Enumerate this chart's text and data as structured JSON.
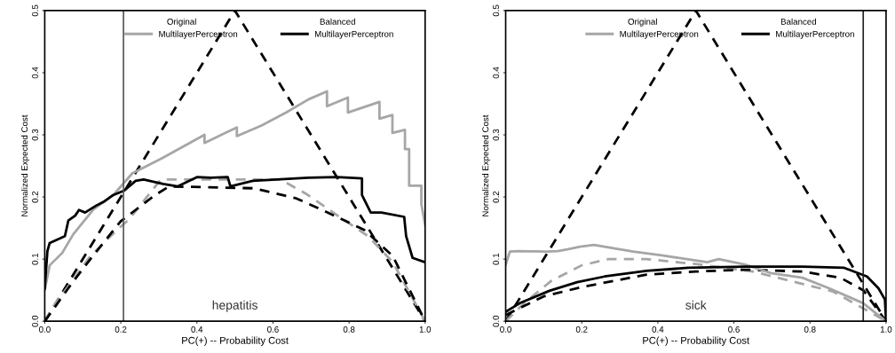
{
  "chart_data": [
    {
      "type": "line",
      "xlabel": "PC(+) -- Probability Cost",
      "ylabel": "Normalized Expected Cost",
      "annotations": [
        "Original",
        "Balanced",
        "hepatitis"
      ],
      "legend": "top",
      "grid": false,
      "marker": "none",
      "xlim": [
        0,
        1
      ],
      "ylim": [
        0,
        0.5
      ],
      "xticks": [
        {
          "value": 0,
          "label": "0.0"
        },
        {
          "value": 0.2,
          "label": "0.2"
        },
        {
          "value": 0.4,
          "label": "0.4"
        },
        {
          "value": 0.6,
          "label": "0.6"
        },
        {
          "value": 0.8,
          "label": "0.8"
        },
        {
          "value": 1,
          "label": "1.0"
        }
      ],
      "yticks": [
        {
          "value": 0,
          "label": "0.0"
        },
        {
          "value": 0.1,
          "label": "0.1"
        },
        {
          "value": 0.2,
          "label": "0.2"
        },
        {
          "value": 0.3,
          "label": "0.3"
        },
        {
          "value": 0.4,
          "label": "0.4"
        },
        {
          "value": 0.5,
          "label": "0.5"
        }
      ],
      "ref_lines": [
        {
          "axis": "x",
          "value": 0.207,
          "color": "#555555",
          "line_style": "solid"
        }
      ],
      "series": [
        {
          "color": "#000000",
          "line_style": "dashed",
          "x": [
            0,
            0.5,
            1
          ],
          "values": [
            0,
            0.5,
            0
          ]
        },
        {
          "color": "#a6a6a6",
          "line_style": "dashed",
          "x": [
            0,
            0.024,
            0.07,
            0.12,
            0.18,
            0.223,
            0.305,
            0.62,
            0.69,
            0.77,
            0.85,
            0.915,
            1
          ],
          "values": [
            0,
            0.025,
            0.063,
            0.105,
            0.141,
            0.165,
            0.228,
            0.228,
            0.204,
            0.17,
            0.137,
            0.095,
            0
          ]
        },
        {
          "color": "#000000",
          "line_style": "dashed",
          "x": [
            0,
            0.07,
            0.12,
            0.2,
            0.29,
            0.327,
            0.55,
            0.66,
            0.73,
            0.84,
            0.915,
            1
          ],
          "values": [
            0,
            0.06,
            0.1,
            0.161,
            0.203,
            0.217,
            0.214,
            0.198,
            0.179,
            0.147,
            0.105,
            0
          ]
        },
        {
          "name": "MultilayerPerceptron",
          "color": "#a6a6a6",
          "line_style": "solid",
          "x": [
            0,
            0.013,
            0.046,
            0.075,
            0.128,
            0.18,
            0.23,
            0.31,
            0.42,
            0.42,
            0.505,
            0.505,
            0.57,
            0.635,
            0.693,
            0.742,
            0.742,
            0.797,
            0.797,
            0.88,
            0.88,
            0.914,
            0.914,
            0.947,
            0.947,
            0.958,
            0.958,
            0.99,
            0.99,
            1
          ],
          "values": [
            0.05,
            0.09,
            0.11,
            0.14,
            0.18,
            0.203,
            0.238,
            0.263,
            0.3,
            0.287,
            0.312,
            0.298,
            0.315,
            0.336,
            0.357,
            0.37,
            0.346,
            0.36,
            0.336,
            0.353,
            0.326,
            0.332,
            0.303,
            0.308,
            0.277,
            0.277,
            0.218,
            0.218,
            0.189,
            0.155
          ]
        },
        {
          "name": "MultilayerPerceptron",
          "color": "#000000",
          "line_style": "solid",
          "x": [
            0,
            0.007,
            0.013,
            0.053,
            0.062,
            0.08,
            0.09,
            0.106,
            0.135,
            0.157,
            0.18,
            0.208,
            0.239,
            0.26,
            0.311,
            0.349,
            0.4,
            0.437,
            0.481,
            0.488,
            0.547,
            0.693,
            0.768,
            0.834,
            0.834,
            0.857,
            0.885,
            0.945,
            0.95,
            0.967,
            1
          ],
          "values": [
            0.053,
            0.113,
            0.126,
            0.137,
            0.162,
            0.17,
            0.179,
            0.175,
            0.186,
            0.193,
            0.203,
            0.21,
            0.226,
            0.228,
            0.221,
            0.217,
            0.232,
            0.231,
            0.232,
            0.217,
            0.226,
            0.231,
            0.232,
            0.23,
            0.203,
            0.175,
            0.175,
            0.168,
            0.137,
            0.102,
            0.095
          ]
        }
      ]
    },
    {
      "type": "line",
      "xlabel": "PC(+) -- Probability Cost",
      "ylabel": "Normalized Expected Cost",
      "annotations": [
        "Original",
        "Balanced",
        "sick"
      ],
      "legend": "top",
      "grid": false,
      "marker": "none",
      "xlim": [
        0,
        1
      ],
      "ylim": [
        0,
        0.5
      ],
      "xticks": [
        {
          "value": 0,
          "label": "0.0"
        },
        {
          "value": 0.2,
          "label": "0.2"
        },
        {
          "value": 0.4,
          "label": "0.4"
        },
        {
          "value": 0.6,
          "label": "0.6"
        },
        {
          "value": 0.8,
          "label": "0.8"
        },
        {
          "value": 1,
          "label": "1.0"
        }
      ],
      "yticks": [
        {
          "value": 0,
          "label": "0.0"
        },
        {
          "value": 0.1,
          "label": "0.1"
        },
        {
          "value": 0.2,
          "label": "0.2"
        },
        {
          "value": 0.3,
          "label": "0.3"
        },
        {
          "value": 0.4,
          "label": "0.4"
        },
        {
          "value": 0.5,
          "label": "0.5"
        }
      ],
      "ref_lines": [
        {
          "axis": "x",
          "value": 0.94,
          "color": "#222222",
          "line_style": "solid"
        }
      ],
      "series": [
        {
          "color": "#000000",
          "line_style": "dashed",
          "x": [
            0,
            0.5,
            1
          ],
          "values": [
            0,
            0.5,
            0
          ]
        },
        {
          "color": "#a6a6a6",
          "line_style": "dashed",
          "x": [
            0,
            0.05,
            0.12,
            0.2,
            0.27,
            0.37,
            0.5,
            0.65,
            0.78,
            0.86,
            1
          ],
          "values": [
            0,
            0.03,
            0.065,
            0.09,
            0.1,
            0.1,
            0.092,
            0.08,
            0.06,
            0.048,
            0
          ]
        },
        {
          "color": "#000000",
          "line_style": "dashed",
          "x": [
            0,
            0.1,
            0.2,
            0.37,
            0.5,
            0.63,
            0.78,
            0.88,
            0.94,
            1
          ],
          "values": [
            0.01,
            0.04,
            0.055,
            0.075,
            0.08,
            0.083,
            0.08,
            0.07,
            0.05,
            0
          ]
        },
        {
          "name": "MultilayerPerceptron",
          "color": "#a6a6a6",
          "line_style": "solid",
          "x": [
            0,
            0.011,
            0.033,
            0.108,
            0.137,
            0.165,
            0.196,
            0.232,
            0.335,
            0.41,
            0.53,
            0.56,
            0.63,
            0.7,
            0.78,
            0.85,
            0.94,
            1
          ],
          "values": [
            0.091,
            0.112,
            0.113,
            0.112,
            0.113,
            0.116,
            0.12,
            0.123,
            0.112,
            0.106,
            0.095,
            0.1,
            0.091,
            0.077,
            0.07,
            0.053,
            0.029,
            0
          ]
        },
        {
          "name": "MultilayerPerceptron",
          "color": "#000000",
          "line_style": "solid",
          "x": [
            0,
            0.04,
            0.115,
            0.188,
            0.26,
            0.37,
            0.48,
            0.63,
            0.78,
            0.89,
            0.95,
            0.98,
            0.997,
            1
          ],
          "values": [
            0.015,
            0.03,
            0.049,
            0.063,
            0.072,
            0.081,
            0.086,
            0.088,
            0.088,
            0.086,
            0.072,
            0.053,
            0.035,
            0
          ]
        }
      ]
    }
  ]
}
